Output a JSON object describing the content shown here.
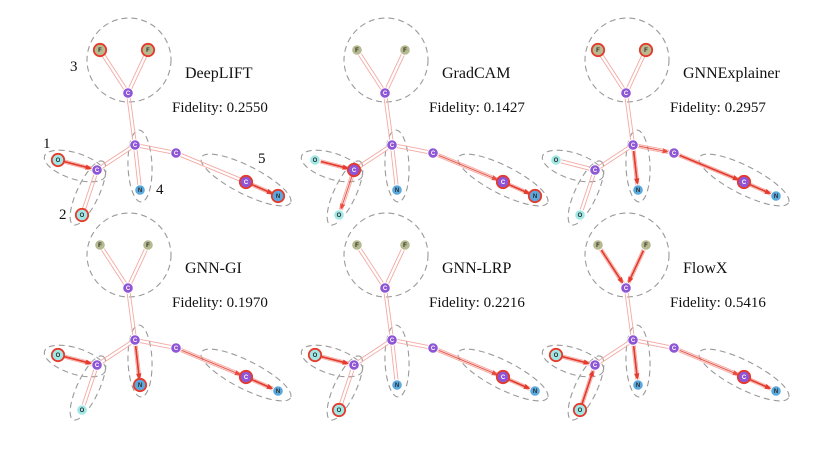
{
  "colors": {
    "C": "#8e55d6",
    "F": "#b7b98e",
    "O": "#9fe8e6",
    "N": "#5aa9de",
    "highlight": "#e53b2c",
    "bond": "#f4a9a3",
    "circle": "#9a9a9a"
  },
  "group_numbers": [
    "1",
    "2",
    "3",
    "4",
    "5"
  ],
  "panels": [
    {
      "method": "DeepLIFT",
      "fidelity_label": "Fidelity: 0.2550",
      "atoms": [
        "F",
        "F",
        "C",
        "C",
        "O",
        "C",
        "O",
        "N",
        "C",
        "C",
        "N"
      ],
      "highlighted_atoms": [
        0,
        1,
        4,
        6,
        9,
        10
      ],
      "strong_edges": [
        [
          4,
          5
        ],
        [
          9,
          10
        ]
      ],
      "medium_edges": []
    },
    {
      "method": "GradCAM",
      "fidelity_label": "Fidelity: 0.1427",
      "atoms": [
        "F",
        "F",
        "C",
        "C",
        "O",
        "C",
        "O",
        "N",
        "C",
        "C",
        "N"
      ],
      "highlighted_atoms": [
        5,
        9,
        10
      ],
      "strong_edges": [
        [
          4,
          5
        ],
        [
          9,
          10
        ]
      ],
      "medium_edges": [
        [
          5,
          6
        ],
        [
          8,
          9
        ]
      ]
    },
    {
      "method": "GNNExplainer",
      "fidelity_label": "Fidelity: 0.2957",
      "atoms": [
        "F",
        "F",
        "C",
        "C",
        "O",
        "C",
        "O",
        "N",
        "C",
        "C",
        "N"
      ],
      "highlighted_atoms": [
        0,
        1,
        9
      ],
      "strong_edges": [
        [
          3,
          7
        ],
        [
          8,
          9
        ],
        [
          9,
          10
        ]
      ],
      "medium_edges": [
        [
          3,
          8
        ]
      ]
    },
    {
      "method": "GNN-GI",
      "fidelity_label": "Fidelity: 0.1970",
      "atoms": [
        "F",
        "F",
        "C",
        "C",
        "O",
        "C",
        "O",
        "N",
        "C",
        "C",
        "N"
      ],
      "highlighted_atoms": [
        4,
        7,
        9
      ],
      "strong_edges": [
        [
          4,
          5
        ],
        [
          3,
          7
        ],
        [
          9,
          10
        ]
      ],
      "medium_edges": [
        [
          8,
          9
        ]
      ]
    },
    {
      "method": "GNN-LRP",
      "fidelity_label": "Fidelity: 0.2216",
      "atoms": [
        "F",
        "F",
        "C",
        "C",
        "O",
        "C",
        "O",
        "N",
        "C",
        "C",
        "N"
      ],
      "highlighted_atoms": [
        4,
        6,
        9
      ],
      "strong_edges": [
        [
          4,
          5
        ],
        [
          9,
          10
        ]
      ],
      "medium_edges": [
        [
          8,
          9
        ]
      ]
    },
    {
      "method": "FlowX",
      "fidelity_label": "Fidelity: 0.5416",
      "atoms": [
        "F",
        "F",
        "C",
        "C",
        "O",
        "C",
        "O",
        "N",
        "C",
        "C",
        "N"
      ],
      "highlighted_atoms": [
        4,
        6,
        9
      ],
      "strong_edges": [
        [
          0,
          2
        ],
        [
          1,
          2
        ],
        [
          4,
          5
        ],
        [
          6,
          5
        ],
        [
          3,
          7
        ],
        [
          9,
          10
        ]
      ],
      "medium_edges": [
        [
          8,
          9
        ]
      ]
    }
  ]
}
